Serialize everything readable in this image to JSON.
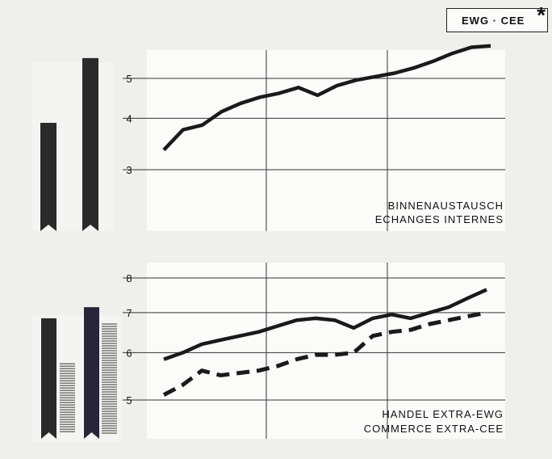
{
  "badge": {
    "label": "EWG · CEE",
    "marker": "*"
  },
  "chart_data": [
    {
      "type": "line",
      "title": "BINNENAUSTAUSCH",
      "subtitle": "ECHANGES INTERNES",
      "scale": "log",
      "y_ticks": [
        "5",
        "4",
        "3"
      ],
      "ylim": [
        2.5,
        6.0
      ],
      "grid": true,
      "x": [
        0,
        1,
        2,
        3,
        4,
        5,
        6,
        7,
        8,
        9,
        10,
        11,
        12,
        13,
        14,
        15,
        16,
        17
      ],
      "series": [
        {
          "style": "solid",
          "values": [
            3.35,
            3.75,
            3.85,
            4.15,
            4.35,
            4.5,
            4.6,
            4.75,
            4.55,
            4.8,
            4.95,
            5.05,
            5.15,
            5.3,
            5.5,
            5.75,
            5.95,
            6.0
          ]
        }
      ],
      "side_bars": [
        {
          "value": 3.9
        },
        {
          "value": 5.6
        }
      ]
    },
    {
      "type": "line",
      "title": "HANDEL EXTRA-EWG",
      "subtitle": "COMMERCE EXTRA-CEE",
      "scale": "log",
      "y_ticks": [
        "8",
        "7",
        "6",
        "5"
      ],
      "ylim": [
        4.6,
        8.3
      ],
      "grid": true,
      "x": [
        0,
        1,
        2,
        3,
        4,
        5,
        6,
        7,
        8,
        9,
        10,
        11,
        12,
        13,
        14,
        15,
        16,
        17
      ],
      "series": [
        {
          "style": "solid",
          "values": [
            5.85,
            6.0,
            6.2,
            6.3,
            6.4,
            6.5,
            6.65,
            6.8,
            6.85,
            6.8,
            6.6,
            6.85,
            6.95,
            6.85,
            7.0,
            7.15,
            7.4,
            7.65
          ]
        },
        {
          "style": "dashed",
          "values": [
            5.1,
            5.3,
            5.6,
            5.5,
            5.55,
            5.6,
            5.7,
            5.85,
            5.95,
            5.95,
            6.0,
            6.4,
            6.5,
            6.55,
            6.7,
            6.8,
            6.9,
            7.0
          ]
        }
      ],
      "side_bars": [
        {
          "value": 6.85,
          "fill": "solid"
        },
        {
          "value": 5.75,
          "fill": "hatched"
        },
        {
          "value": 7.15,
          "fill": "solid"
        },
        {
          "value": 6.7,
          "fill": "hatched"
        }
      ]
    }
  ]
}
